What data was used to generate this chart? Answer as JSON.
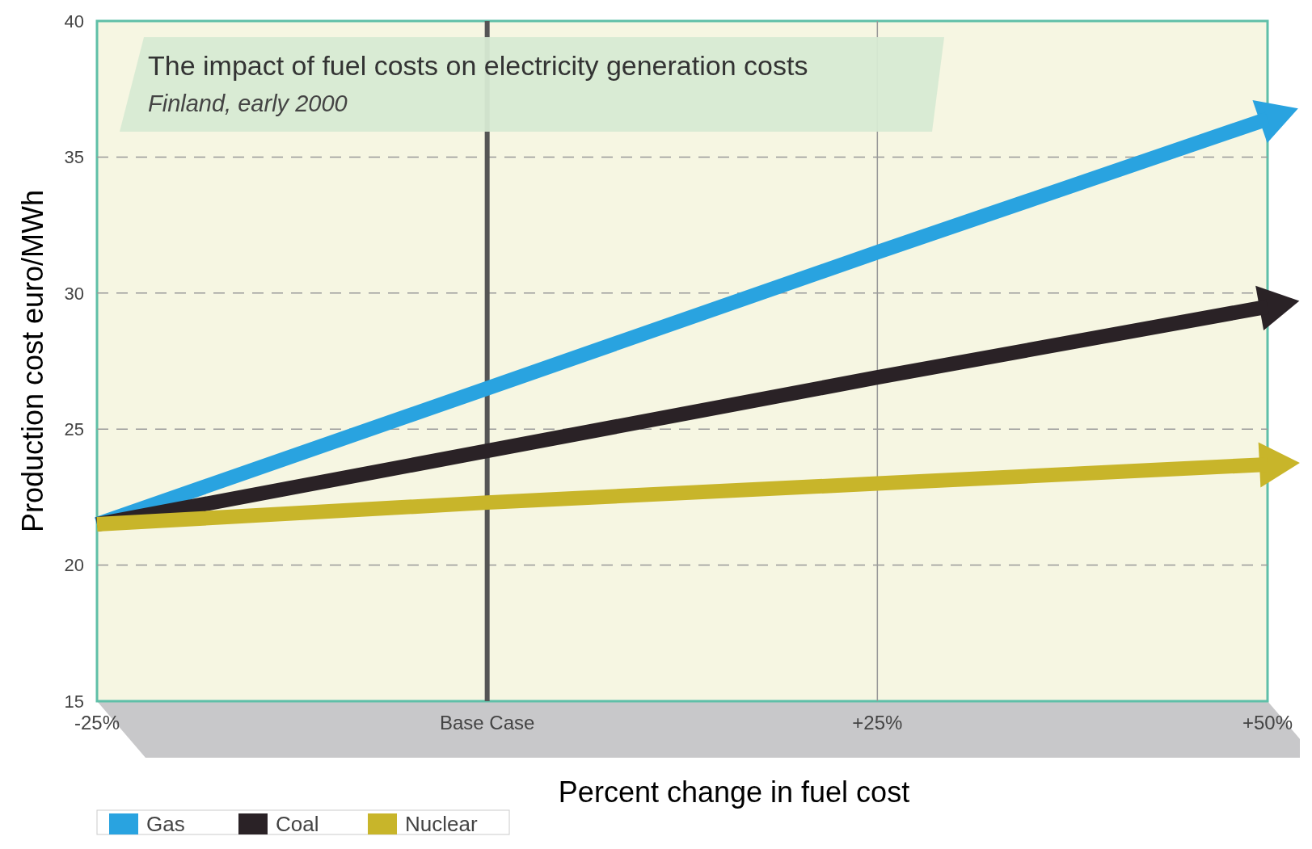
{
  "chart_data": {
    "type": "line",
    "title": "The impact of fuel costs on electricity generation costs",
    "subtitle": "Finland, early 2000",
    "xlabel": "Percent change in fuel cost",
    "ylabel": "Production cost euro/MWh",
    "categories": [
      "-25%",
      "Base Case",
      "+25%",
      "+50%"
    ],
    "series": [
      {
        "name": "Gas",
        "color": "#29a3e0",
        "values": [
          21.5,
          26.5,
          31.5,
          36.4
        ]
      },
      {
        "name": "Coal",
        "color": "#2a2226",
        "values": [
          21.5,
          24.2,
          26.9,
          29.5
        ]
      },
      {
        "name": "Nuclear",
        "color": "#c8b52a",
        "values": [
          21.5,
          22.3,
          23.0,
          23.7
        ]
      }
    ],
    "ylim": [
      15,
      40
    ],
    "yticks": [
      15,
      20,
      25,
      30,
      35,
      40
    ],
    "grid": "y",
    "ref_lines": [
      {
        "axis": "x",
        "value": "Base Case",
        "color": "#555555"
      },
      {
        "axis": "x",
        "value": "+25%",
        "color": "#999999"
      }
    ],
    "legend": "bottom left",
    "marker": "none",
    "line_style": "solid"
  }
}
